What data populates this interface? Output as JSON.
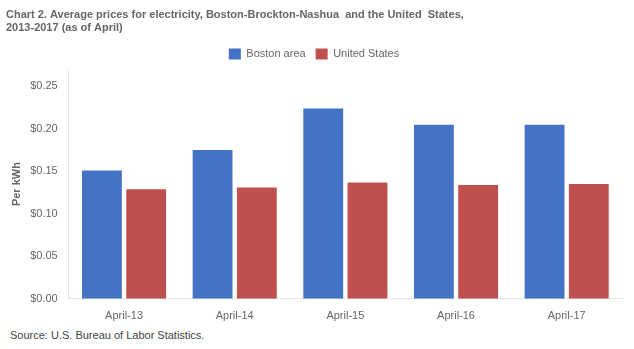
{
  "chart_data": {
    "type": "bar",
    "title": [
      "Chart 2. Average prices for electricity, Boston-Brockton-Nashua  and the United  States,",
      "2013-2017 (as of April)"
    ],
    "ylabel": "Per kWh",
    "categories": [
      "April-13",
      "April-14",
      "April-15",
      "April-16",
      "April-17"
    ],
    "series": [
      {
        "name": "Boston area",
        "color": "#4472C4",
        "values": [
          0.151,
          0.175,
          0.224,
          0.205,
          0.205
        ]
      },
      {
        "name": "United States",
        "color": "#C0504D",
        "values": [
          0.129,
          0.131,
          0.137,
          0.134,
          0.135
        ]
      }
    ],
    "ylim": [
      0,
      0.27
    ],
    "yticks": [
      {
        "value": 0.0,
        "label": "$0.00"
      },
      {
        "value": 0.05,
        "label": "$0.05"
      },
      {
        "value": 0.1,
        "label": "$0.10"
      },
      {
        "value": 0.15,
        "label": "$0.15"
      },
      {
        "value": 0.2,
        "label": "$0.20"
      },
      {
        "value": 0.25,
        "label": "$0.25"
      }
    ],
    "annotations": [
      "Source: U.S. Bureau of Labor Statistics."
    ],
    "grid": false,
    "legend": "top"
  }
}
